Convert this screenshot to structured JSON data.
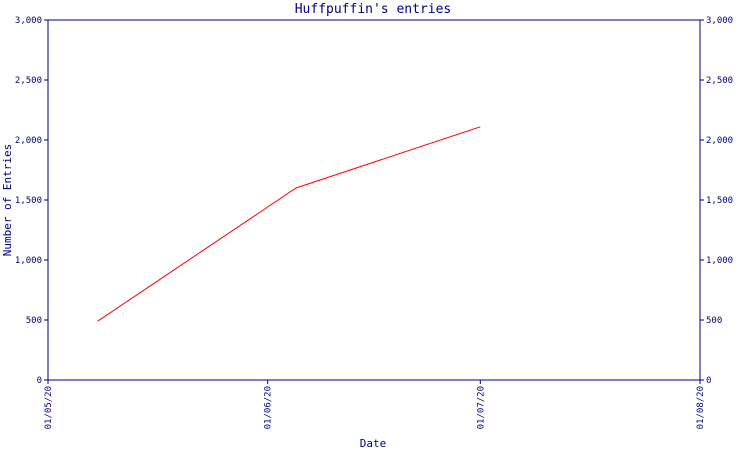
{
  "chart_data": {
    "type": "line",
    "title": "Huffpuffin's entries",
    "xlabel": "Date",
    "ylabel": "Number of Entries",
    "ylim": [
      0,
      3000
    ],
    "y_ticks": [
      0,
      500,
      1000,
      1500,
      2000,
      2500,
      3000
    ],
    "y_tick_labels": [
      "0",
      "500",
      "1,000",
      "1,500",
      "2,000",
      "2,500",
      "3,000"
    ],
    "x_ticks": [
      "01/05/20",
      "01/06/20",
      "01/07/20",
      "01/08/20"
    ],
    "x": [
      "2020-05-08",
      "2020-06-05",
      "2020-07-01"
    ],
    "values": [
      490,
      1600,
      2110
    ],
    "grid": false,
    "secondary_y_axis": true,
    "colors": {
      "axis": "#000080",
      "line": "#ff0000",
      "text": "#000080"
    }
  }
}
